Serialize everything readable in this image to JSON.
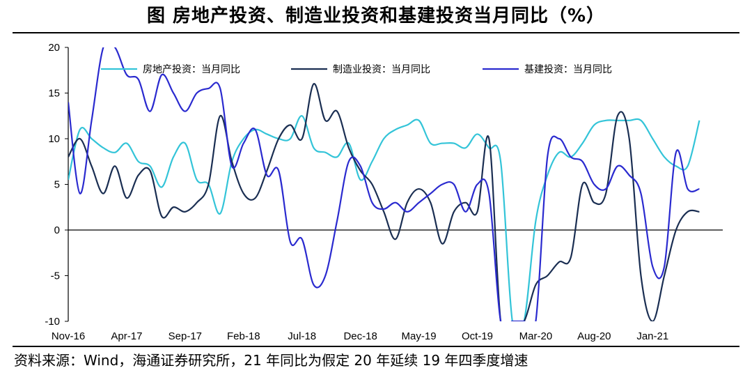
{
  "title": "图 房地产投资、制造业投资和基建投资当月同比（%）",
  "source": "资料来源：Wind，海通证券研究所，21 年同比为假定 20 年延续 19 年四季度增速",
  "chart_data": {
    "type": "line",
    "title": "图 房地产投资、制造业投资和基建投资当月同比（%）",
    "xlabel": "",
    "ylabel": "",
    "ylim": [
      -10,
      20
    ],
    "yticks": [
      -10,
      -5,
      0,
      5,
      10,
      15,
      20
    ],
    "xrange": [
      0,
      56
    ],
    "x_tick_labels": [
      {
        "x": 0,
        "label": "Nov-16"
      },
      {
        "x": 5,
        "label": "Apr-17"
      },
      {
        "x": 10,
        "label": "Sep-17"
      },
      {
        "x": 15,
        "label": "Feb-18"
      },
      {
        "x": 20,
        "label": "Jul-18"
      },
      {
        "x": 25,
        "label": "Dec-18"
      },
      {
        "x": 30,
        "label": "May-19"
      },
      {
        "x": 35,
        "label": "Oct-19"
      },
      {
        "x": 40,
        "label": "Mar-20"
      },
      {
        "x": 45,
        "label": "Aug-20"
      },
      {
        "x": 50,
        "label": "Jan-21"
      }
    ],
    "legend_position": "top",
    "series": [
      {
        "name": "房地产投资：当月同比",
        "color": "#33C4D8",
        "x": [
          0,
          1,
          2,
          3,
          4,
          5,
          6,
          7,
          8,
          9,
          10,
          11,
          12,
          13,
          14,
          15,
          16,
          17,
          18,
          19,
          20,
          21,
          22,
          23,
          24,
          25,
          26,
          27,
          28,
          29,
          30,
          31,
          32,
          33,
          34,
          35,
          36,
          37,
          38,
          39,
          40,
          41,
          42,
          43,
          44,
          45,
          46,
          47,
          48,
          49,
          50,
          51,
          52,
          53,
          54
        ],
        "values": [
          5.5,
          11,
          10,
          9,
          8.5,
          9.5,
          7.5,
          7,
          4.7,
          8,
          9.5,
          5.5,
          5,
          1.8,
          7.5,
          10,
          11,
          10.5,
          10,
          10,
          12.5,
          9,
          8.5,
          8,
          9.5,
          5.5,
          7.5,
          10,
          11,
          11.5,
          12,
          9.5,
          9.5,
          9.5,
          9,
          10.5,
          9,
          7.5,
          -10,
          -10,
          1,
          6,
          8.5,
          8,
          9.5,
          11.5,
          12,
          12,
          12,
          12,
          10,
          8,
          7,
          7,
          12
        ]
      },
      {
        "name": "制造业投资：当月同比",
        "color": "#1A2E52",
        "x": [
          0,
          1,
          2,
          3,
          4,
          5,
          6,
          7,
          8,
          9,
          10,
          11,
          12,
          13,
          14,
          15,
          16,
          17,
          18,
          19,
          20,
          21,
          22,
          23,
          24,
          25,
          26,
          27,
          28,
          29,
          30,
          31,
          32,
          33,
          34,
          35,
          36,
          37,
          38,
          39,
          40,
          41,
          42,
          43,
          44,
          45,
          46,
          47,
          48,
          49,
          50,
          51,
          52,
          53,
          54
        ],
        "values": [
          8,
          10,
          7,
          4,
          7,
          3.5,
          6,
          6.5,
          1.5,
          2.5,
          2,
          3,
          5,
          12.5,
          7.5,
          4,
          3.5,
          6.5,
          10,
          11.5,
          10,
          16,
          12,
          13,
          9,
          6.5,
          5,
          2,
          -1,
          3,
          4.5,
          3,
          -1.5,
          2,
          3,
          2,
          10,
          -10,
          -10,
          -10,
          -6,
          -5,
          -3.5,
          -3,
          5,
          3,
          4,
          12.5,
          10,
          -5,
          -10,
          -5,
          0,
          2,
          2
        ]
      },
      {
        "name": "基建投资：当月同比",
        "color": "#2A2ACF",
        "x": [
          0,
          1,
          2,
          3,
          4,
          5,
          6,
          7,
          8,
          9,
          10,
          11,
          12,
          13,
          14,
          15,
          16,
          17,
          18,
          19,
          20,
          21,
          22,
          23,
          24,
          25,
          26,
          27,
          28,
          29,
          30,
          31,
          32,
          33,
          34,
          35,
          36,
          37,
          38,
          39,
          40,
          41,
          42,
          43,
          44,
          45,
          46,
          47,
          48,
          49,
          50,
          51,
          52,
          53,
          54
        ],
        "values": [
          14,
          4,
          12,
          20,
          20,
          17,
          16.5,
          13,
          17,
          15,
          13,
          15,
          15.5,
          15.5,
          7,
          9.5,
          11,
          6,
          6.5,
          -1.3,
          -1,
          -6,
          -5,
          1,
          7.5,
          7,
          3,
          2.3,
          3,
          2,
          3,
          4,
          5,
          5,
          2,
          5,
          4,
          -10,
          -10,
          -10,
          -10,
          8,
          10,
          8,
          7.5,
          5,
          4.5,
          7,
          6,
          4,
          -4,
          -4,
          8.5,
          4.5,
          4.5
        ]
      }
    ]
  }
}
